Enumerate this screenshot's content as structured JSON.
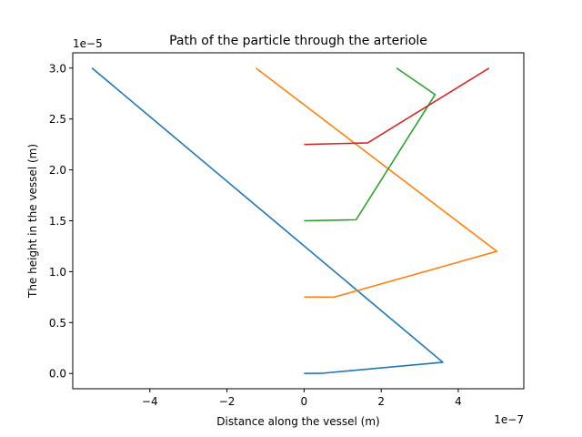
{
  "chart_data": {
    "type": "line",
    "title": "Path of the particle through the arteriole",
    "xlabel": "Distance along the vessel (m)",
    "ylabel": "The height in the vessel (m)",
    "x_offset_label": "1e−7",
    "y_offset_label": "1e−5",
    "xlim": [
      -6.0,
      5.7
    ],
    "ylim": [
      -0.15,
      3.15
    ],
    "x_ticks": [
      {
        "value": -4,
        "label": "−4"
      },
      {
        "value": -2,
        "label": "−2"
      },
      {
        "value": 0,
        "label": "0"
      },
      {
        "value": 2,
        "label": "2"
      },
      {
        "value": 4,
        "label": "4"
      }
    ],
    "y_ticks": [
      {
        "value": 0.0,
        "label": "0.0"
      },
      {
        "value": 0.5,
        "label": "0.5"
      },
      {
        "value": 1.0,
        "label": "1.0"
      },
      {
        "value": 1.5,
        "label": "1.5"
      },
      {
        "value": 2.0,
        "label": "2.0"
      },
      {
        "value": 2.5,
        "label": "2.5"
      },
      {
        "value": 3.0,
        "label": "3.0"
      }
    ],
    "grid": false,
    "series": [
      {
        "color": "#1f77b4",
        "points": [
          [
            0,
            0
          ],
          [
            0.5,
            0.003
          ],
          [
            3.6,
            0.11
          ],
          [
            -5.5,
            3.0
          ]
        ]
      },
      {
        "color": "#ff7f0e",
        "points": [
          [
            0,
            0.75
          ],
          [
            0.8,
            0.752
          ],
          [
            5.0,
            1.2
          ],
          [
            -1.25,
            3.0
          ]
        ]
      },
      {
        "color": "#2ca02c",
        "points": [
          [
            0,
            1.5
          ],
          [
            1.35,
            1.51
          ],
          [
            3.4,
            2.74
          ],
          [
            2.4,
            3.0
          ]
        ]
      },
      {
        "color": "#d62728",
        "points": [
          [
            0,
            2.25
          ],
          [
            1.65,
            2.265
          ],
          [
            4.8,
            3.0
          ]
        ]
      }
    ]
  }
}
